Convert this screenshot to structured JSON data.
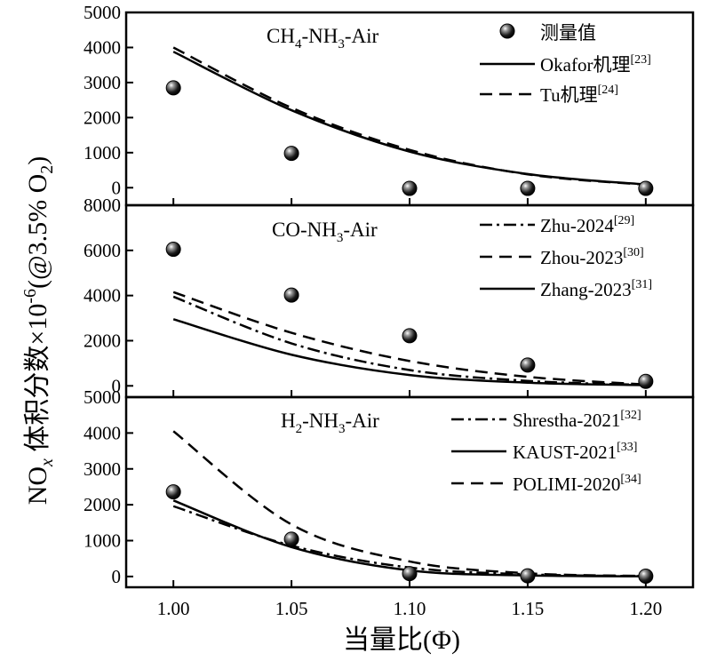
{
  "chart_data": {
    "type": "line",
    "xlabel": "当量比(Φ)",
    "ylabel": "NOx 体积分数×10-6(@3.5% O2)",
    "ylabel_parts": {
      "a": "NO",
      "b": "x",
      "c": " 体积分数×10",
      "d": "-6",
      "e": "(@3.5% O",
      "f": "2",
      "g": ")"
    },
    "xlim": [
      0.98,
      1.22
    ],
    "x_ticks": [
      "1.00",
      "1.05",
      "1.10",
      "1.15",
      "1.20"
    ],
    "x": [
      1.0,
      1.05,
      1.1,
      1.15,
      1.2
    ],
    "panels": [
      {
        "title": {
          "a": "CH",
          "b": "4",
          "c": "-NH",
          "d": "3",
          "e": "-Air"
        },
        "ylim": [
          -500,
          5000
        ],
        "y_ticks": [
          0,
          1000,
          2000,
          3000,
          4000,
          5000
        ],
        "measured": {
          "name": "测量值",
          "values": [
            2850,
            980,
            -20,
            -20,
            -20
          ]
        },
        "series": [
          {
            "name": "Okafor机理",
            "ref": "[23]",
            "style": "solid",
            "values": [
              3880,
              2210,
              1030,
              390,
              90
            ]
          },
          {
            "name": "Tu机理",
            "ref": "[24]",
            "style": "dash",
            "values": [
              4000,
              2280,
              1080,
              380,
              85
            ]
          }
        ]
      },
      {
        "title": {
          "a": "CO-NH",
          "b": "3",
          "c": "-Air",
          "d": "",
          "e": ""
        },
        "ylim": [
          -500,
          8000
        ],
        "y_ticks": [
          0,
          2000,
          4000,
          6000,
          8000
        ],
        "measured": {
          "name": "",
          "values": [
            6050,
            4020,
            2220,
            920,
            200
          ]
        },
        "series": [
          {
            "name": "Zhu-2024",
            "ref": "[29]",
            "style": "dashdot",
            "values": [
              3950,
              1880,
              700,
              220,
              40
            ]
          },
          {
            "name": "Zhou-2023",
            "ref": "[30]",
            "style": "dash",
            "values": [
              4150,
              2350,
              1100,
              400,
              60
            ]
          },
          {
            "name": "Zhang-2023",
            "ref": "[31]",
            "style": "solid",
            "values": [
              2950,
              1380,
              480,
              140,
              30
            ]
          }
        ]
      },
      {
        "title": {
          "a": "H",
          "b": "2",
          "c": "-NH",
          "d": "3",
          "e": "-Air"
        },
        "ylim": [
          -300,
          5000
        ],
        "y_ticks": [
          0,
          1000,
          2000,
          3000,
          4000,
          5000
        ],
        "measured": {
          "name": "",
          "values": [
            2360,
            1040,
            80,
            20,
            10
          ]
        },
        "series": [
          {
            "name": "Shrestha-2021",
            "ref": "[32]",
            "style": "dashdot",
            "values": [
              1960,
              860,
              250,
              60,
              10
            ]
          },
          {
            "name": "KAUST-2021",
            "ref": "[33]",
            "style": "solid",
            "values": [
              2120,
              820,
              170,
              30,
              5
            ]
          },
          {
            "name": "POLIMI-2020",
            "ref": "[34]",
            "style": "dash",
            "values": [
              4050,
              1450,
              420,
              90,
              15
            ]
          }
        ]
      }
    ]
  }
}
